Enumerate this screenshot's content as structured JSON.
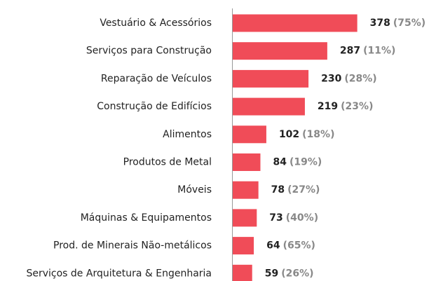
{
  "chart_data": {
    "type": "bar",
    "orientation": "horizontal",
    "categories": [
      "Vestuário & Acessórios",
      "Serviços para Construção",
      "Reparação de Veículos",
      "Construção de Edifícios",
      "Alimentos",
      "Produtos de Metal",
      "Móveis",
      "Máquinas & Equipamentos",
      "Prod. de Minerais Não-metálicos",
      "Serviços de Arquitetura & Engenharia"
    ],
    "values": [
      378,
      287,
      230,
      219,
      102,
      84,
      78,
      73,
      64,
      59
    ],
    "share_labels": [
      "(75%)",
      "(11%)",
      "(28%)",
      "(23%)",
      "(18%)",
      "(19%)",
      "(27%)",
      "(40%)",
      "(65%)",
      "(26%)"
    ],
    "color": "#f04c58",
    "xlim": [
      0,
      400
    ]
  }
}
